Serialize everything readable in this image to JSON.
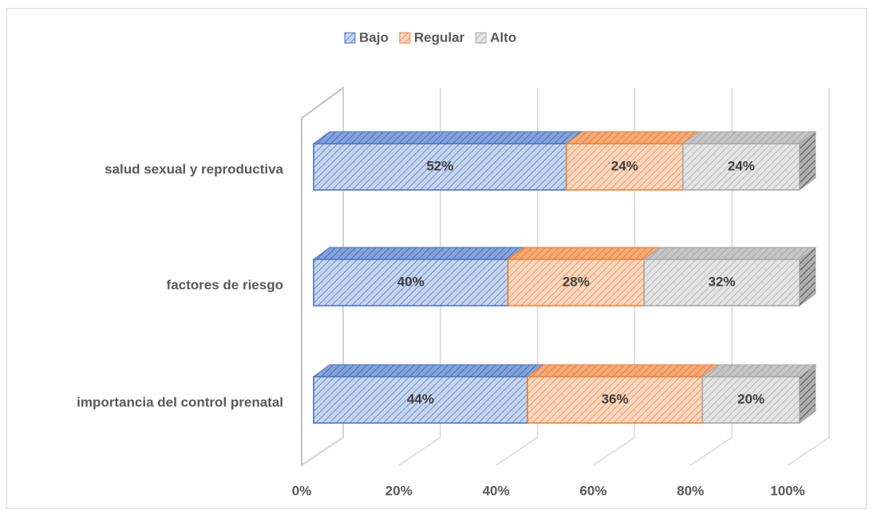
{
  "chart_data": {
    "type": "bar",
    "orientation": "horizontal",
    "stacked": true,
    "categories": [
      "salud sexual y reproductiva",
      "factores de riesgo",
      "importancia del control prenatal"
    ],
    "series": [
      {
        "name": "Bajo",
        "color": "#4472c4",
        "values": [
          52,
          40,
          44
        ],
        "value_labels": [
          "52%",
          "40%",
          "44%"
        ]
      },
      {
        "name": "Regular",
        "color": "#ed7d31",
        "values": [
          24,
          28,
          36
        ],
        "value_labels": [
          "24%",
          "28%",
          "36%"
        ]
      },
      {
        "name": "Alto",
        "color": "#a5a5a5",
        "values": [
          24,
          32,
          20
        ],
        "value_labels": [
          "24%",
          "32%",
          "20%"
        ]
      }
    ],
    "xlim": [
      0,
      100
    ],
    "xticks": [
      {
        "value": 0,
        "label": "0%"
      },
      {
        "value": 20,
        "label": "20%"
      },
      {
        "value": 40,
        "label": "40%"
      },
      {
        "value": 60,
        "label": "60%"
      },
      {
        "value": 80,
        "label": "80%"
      },
      {
        "value": 100,
        "label": "100%"
      }
    ],
    "grid": true,
    "legend": "top"
  }
}
